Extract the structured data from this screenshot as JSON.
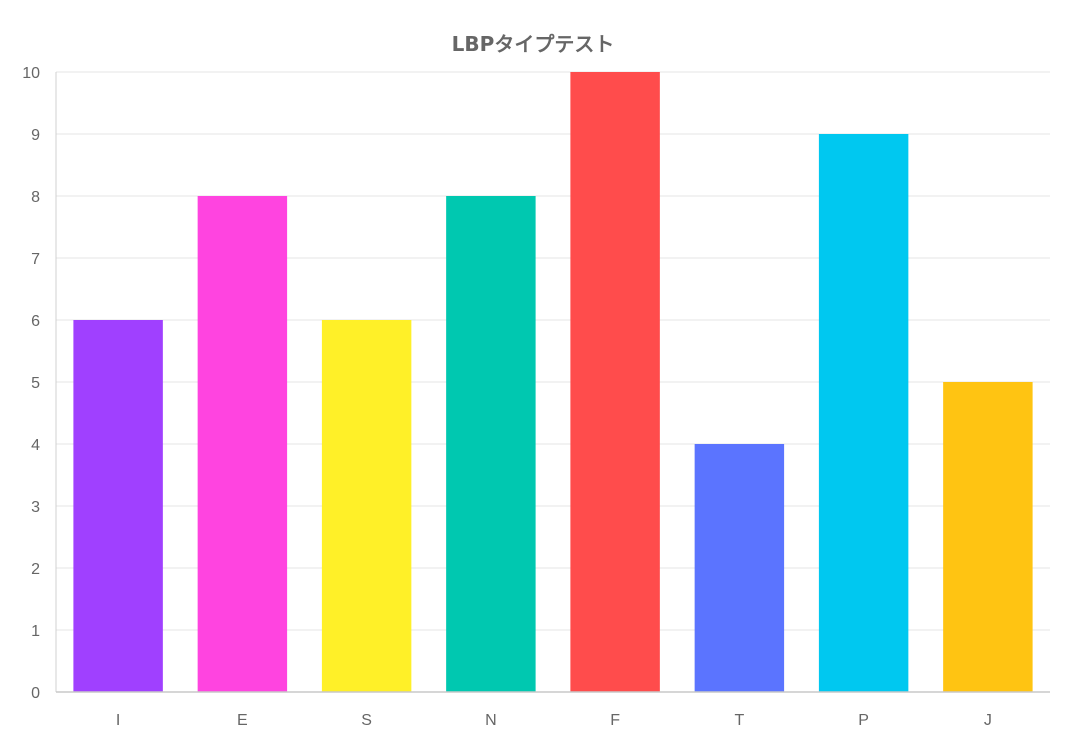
{
  "chart_data": {
    "type": "bar",
    "title": "LBPタイプテスト",
    "xlabel": "",
    "ylabel": "",
    "categories": [
      "I",
      "E",
      "S",
      "N",
      "F",
      "T",
      "P",
      "J"
    ],
    "values": [
      6,
      8,
      6,
      8,
      10,
      4,
      9,
      5
    ],
    "colors": [
      "#a040ff",
      "#ff44e0",
      "#fff028",
      "#00c8b0",
      "#ff4c4c",
      "#5b74ff",
      "#00c8f0",
      "#ffc412"
    ],
    "ylim": [
      0,
      10
    ],
    "yticks": [
      "0",
      "1",
      "2",
      "3",
      "4",
      "5",
      "6",
      "7",
      "8",
      "9",
      "10"
    ],
    "grid": true,
    "legend": "none"
  }
}
